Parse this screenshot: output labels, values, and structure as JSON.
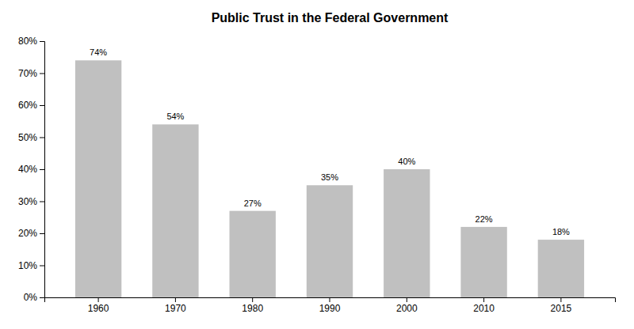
{
  "chart_data": {
    "type": "bar",
    "title": "Public Trust in the Federal Government",
    "categories": [
      "1960",
      "1970",
      "1980",
      "1990",
      "2000",
      "2010",
      "2015"
    ],
    "values": [
      74,
      54,
      27,
      35,
      40,
      22,
      18
    ],
    "value_labels": [
      "74%",
      "54%",
      "27%",
      "35%",
      "40%",
      "22%",
      "18%"
    ],
    "data_labels": true,
    "color": "#c0c0c0",
    "ylim": [
      0,
      80
    ],
    "yticks": [
      {
        "value": 0,
        "label": "0%"
      },
      {
        "value": 10,
        "label": "10%"
      },
      {
        "value": 20,
        "label": "20%"
      },
      {
        "value": 30,
        "label": "30%"
      },
      {
        "value": 40,
        "label": "40%"
      },
      {
        "value": 50,
        "label": "50%"
      },
      {
        "value": 60,
        "label": "60%"
      },
      {
        "value": 70,
        "label": "70%"
      },
      {
        "value": 80,
        "label": "80%"
      }
    ],
    "grid": false
  }
}
